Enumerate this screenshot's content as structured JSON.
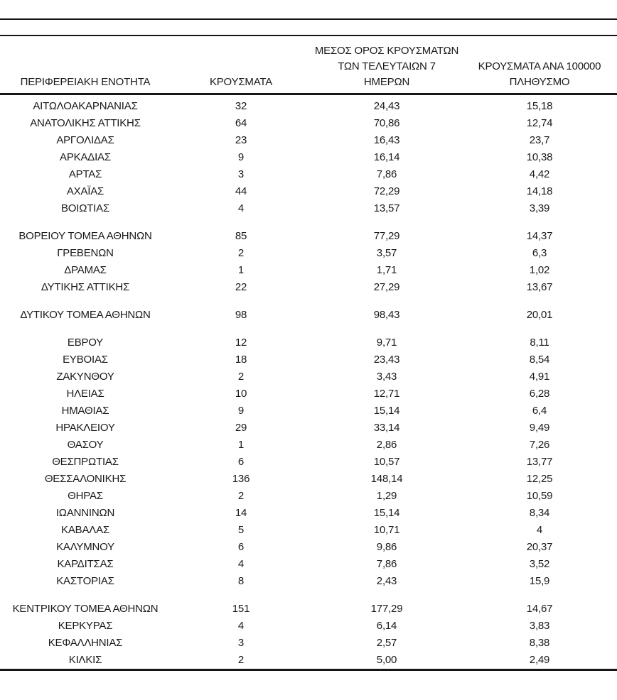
{
  "page": {
    "background_color": "#ffffff",
    "text_color": "#1a1a1a",
    "rule_color": "#161616"
  },
  "chart_data": {
    "type": "table",
    "columns": [
      "ΠΕΡΙΦΕΡΕΙΑΚΗ ΕΝΟΤΗΤΑ",
      "ΚΡΟΥΣΜΑΤΑ",
      "ΜΕΣΟΣ ΟΡΟΣ ΚΡΟΥΣΜΑΤΩΝ ΤΩΝ ΤΕΛΕΥΤΑΙΩΝ 7 ΗΜΕΡΩΝ",
      "ΚΡΟΥΣΜΑΤΑ ΑΝΑ 100000 ΠΛΗΘΥΣΜΟ"
    ],
    "header_display": [
      "ΠΕΡΙΦΕΡΕΙΑΚΗ ΕΝΟΤΗΤΑ",
      "ΚΡΟΥΣΜΑΤΑ",
      "ΜΕΣΟΣ ΟΡΟΣ ΚΡΟΥΣΜΑΤΩΝ\nΤΩΝ ΤΕΛΕΥΤΑΙΩΝ 7\nΗΜΕΡΩΝ",
      "ΚΡΟΥΣΜΑΤΑ ΑΝΑ 100000\nΠΛΗΘΥΣΜΟ"
    ],
    "groups": [
      {
        "rows": [
          {
            "region": "ΑΙΤΩΛΟΑΚΑΡΝΑΝΙΑΣ",
            "cases": "32",
            "avg_7d": "24,43",
            "per_100k": "15,18"
          },
          {
            "region": "ΑΝΑΤΟΛΙΚΗΣ ΑΤΤΙΚΗΣ",
            "cases": "64",
            "avg_7d": "70,86",
            "per_100k": "12,74"
          },
          {
            "region": "ΑΡΓΟΛΙΔΑΣ",
            "cases": "23",
            "avg_7d": "16,43",
            "per_100k": "23,7"
          },
          {
            "region": "ΑΡΚΑΔΙΑΣ",
            "cases": "9",
            "avg_7d": "16,14",
            "per_100k": "10,38"
          },
          {
            "region": "ΑΡΤΑΣ",
            "cases": "3",
            "avg_7d": "7,86",
            "per_100k": "4,42"
          },
          {
            "region": "ΑΧΑΪΑΣ",
            "cases": "44",
            "avg_7d": "72,29",
            "per_100k": "14,18"
          },
          {
            "region": "ΒΟΙΩΤΙΑΣ",
            "cases": "4",
            "avg_7d": "13,57",
            "per_100k": "3,39"
          }
        ]
      },
      {
        "rows": [
          {
            "region": "ΒΟΡΕΙΟΥ ΤΟΜΕΑ ΑΘΗΝΩΝ",
            "cases": "85",
            "avg_7d": "77,29",
            "per_100k": "14,37"
          },
          {
            "region": "ΓΡΕΒΕΝΩΝ",
            "cases": "2",
            "avg_7d": "3,57",
            "per_100k": "6,3"
          },
          {
            "region": "ΔΡΑΜΑΣ",
            "cases": "1",
            "avg_7d": "1,71",
            "per_100k": "1,02"
          },
          {
            "region": "ΔΥΤΙΚΗΣ ΑΤΤΙΚΗΣ",
            "cases": "22",
            "avg_7d": "27,29",
            "per_100k": "13,67"
          }
        ]
      },
      {
        "rows": [
          {
            "region": "ΔΥΤΙΚΟΥ ΤΟΜΕΑ ΑΘΗΝΩΝ",
            "cases": "98",
            "avg_7d": "98,43",
            "per_100k": "20,01"
          }
        ]
      },
      {
        "rows": [
          {
            "region": "ΕΒΡΟΥ",
            "cases": "12",
            "avg_7d": "9,71",
            "per_100k": "8,11"
          },
          {
            "region": "ΕΥΒΟΙΑΣ",
            "cases": "18",
            "avg_7d": "23,43",
            "per_100k": "8,54"
          },
          {
            "region": "ΖΑΚΥΝΘΟΥ",
            "cases": "2",
            "avg_7d": "3,43",
            "per_100k": "4,91"
          },
          {
            "region": "ΗΛΕΙΑΣ",
            "cases": "10",
            "avg_7d": "12,71",
            "per_100k": "6,28"
          },
          {
            "region": "ΗΜΑΘΙΑΣ",
            "cases": "9",
            "avg_7d": "15,14",
            "per_100k": "6,4"
          },
          {
            "region": "ΗΡΑΚΛΕΙΟΥ",
            "cases": "29",
            "avg_7d": "33,14",
            "per_100k": "9,49"
          },
          {
            "region": "ΘΑΣΟΥ",
            "cases": "1",
            "avg_7d": "2,86",
            "per_100k": "7,26"
          },
          {
            "region": "ΘΕΣΠΡΩΤΙΑΣ",
            "cases": "6",
            "avg_7d": "10,57",
            "per_100k": "13,77"
          },
          {
            "region": "ΘΕΣΣΑΛΟΝΙΚΗΣ",
            "cases": "136",
            "avg_7d": "148,14",
            "per_100k": "12,25"
          },
          {
            "region": "ΘΗΡΑΣ",
            "cases": "2",
            "avg_7d": "1,29",
            "per_100k": "10,59"
          },
          {
            "region": "ΙΩΑΝΝΙΝΩΝ",
            "cases": "14",
            "avg_7d": "15,14",
            "per_100k": "8,34"
          },
          {
            "region": "ΚΑΒΑΛΑΣ",
            "cases": "5",
            "avg_7d": "10,71",
            "per_100k": "4"
          },
          {
            "region": "ΚΑΛΥΜΝΟΥ",
            "cases": "6",
            "avg_7d": "9,86",
            "per_100k": "20,37"
          },
          {
            "region": "ΚΑΡΔΙΤΣΑΣ",
            "cases": "4",
            "avg_7d": "7,86",
            "per_100k": "3,52"
          },
          {
            "region": "ΚΑΣΤΟΡΙΑΣ",
            "cases": "8",
            "avg_7d": "2,43",
            "per_100k": "15,9"
          }
        ]
      },
      {
        "rows": [
          {
            "region": "ΚΕΝΤΡΙΚΟΥ ΤΟΜΕΑ ΑΘΗΝΩΝ",
            "cases": "151",
            "avg_7d": "177,29",
            "per_100k": "14,67"
          },
          {
            "region": "ΚΕΡΚΥΡΑΣ",
            "cases": "4",
            "avg_7d": "6,14",
            "per_100k": "3,83"
          },
          {
            "region": "ΚΕΦΑΛΛΗΝΙΑΣ",
            "cases": "3",
            "avg_7d": "2,57",
            "per_100k": "8,38"
          },
          {
            "region": "ΚΙΛΚΙΣ",
            "cases": "2",
            "avg_7d": "5,00",
            "per_100k": "2,49"
          }
        ]
      }
    ]
  }
}
